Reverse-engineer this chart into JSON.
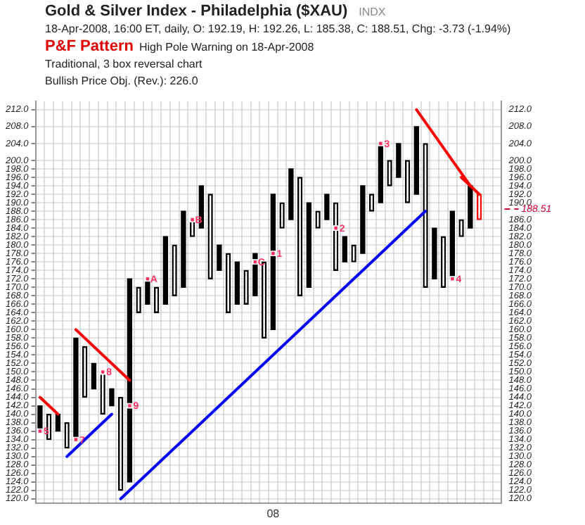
{
  "chart_data": {
    "type": "bar",
    "title": "Gold & Silver Index - Philadelphia ($XAU)",
    "subtitle": "18-Apr-2008, 16:00 ET, daily, O: 192.19, H: 192.26, L: 185.38, C: 188.51, Chg: -3.73 (-1.94%)",
    "annotations": [
      "INDX",
      "P&F Pattern",
      "High Pole Warning on 18-Apr-2008",
      "Traditional, 3 box reversal chart",
      "Bullish Price Obj. (Rev.): 226.0"
    ],
    "categories": [
      null,
      null,
      null,
      null,
      null,
      null,
      null,
      null,
      null,
      null,
      null,
      null,
      null,
      null,
      null,
      null,
      null,
      null,
      null,
      null,
      null,
      null,
      null,
      null,
      null,
      null,
      "08",
      null,
      null,
      null,
      null,
      null,
      null,
      null,
      null,
      null,
      null,
      null,
      null,
      null,
      null,
      null,
      null,
      null,
      null,
      null,
      null,
      null,
      null,
      null,
      null,
      null
    ],
    "series": [
      {
        "marker": "cross",
        "color": "#000000",
        "base": [
          136,
          null,
          136,
          null,
          134,
          null,
          146,
          null,
          142,
          null,
          124,
          null,
          166,
          null,
          166,
          null,
          170,
          null,
          184,
          null,
          174,
          null,
          166,
          null,
          168,
          null,
          160,
          null,
          186,
          null,
          170,
          null,
          186,
          null,
          176,
          null,
          178,
          null,
          190,
          null,
          196,
          null,
          192,
          null,
          172,
          null,
          172,
          null,
          184,
          null,
          null,
          null
        ],
        "values": [
          6,
          null,
          4,
          null,
          24,
          null,
          6,
          null,
          4,
          null,
          48,
          null,
          6,
          null,
          16,
          null,
          18,
          null,
          10,
          null,
          6,
          null,
          10,
          null,
          10,
          null,
          32,
          null,
          12,
          null,
          20,
          null,
          6,
          null,
          6,
          null,
          16,
          null,
          14,
          null,
          8,
          null,
          16,
          null,
          12,
          null,
          16,
          null,
          10,
          null,
          null,
          null
        ]
      },
      {
        "marker": "circle",
        "colors": [
          "#000000",
          "#000000",
          "#000000",
          "#000000",
          "#000000",
          "#000000",
          "#000000",
          "#000000",
          "#000000",
          "#000000",
          "#000000",
          "#000000",
          "#000000",
          "#000000",
          "#000000",
          "#000000",
          "#000000",
          "#000000",
          "#000000",
          "#000000",
          "#000000",
          "#000000",
          "#000000",
          "#000000",
          "#000000",
          "#000000",
          "#000000",
          "#000000",
          "#000000",
          "#000000",
          "#000000",
          "#000000",
          "#000000",
          "#000000",
          "#000000",
          "#000000",
          "#000000",
          "#000000",
          "#000000",
          "#000000",
          "#000000",
          "#000000",
          "#000000",
          "#000000",
          "#000000",
          "#000000",
          "#000000",
          "#000000",
          "#000000",
          "#ff0000",
          "#000000",
          "#000000"
        ],
        "base": [
          null,
          134,
          null,
          132,
          null,
          144,
          null,
          140,
          null,
          122,
          null,
          164,
          null,
          164,
          null,
          168,
          null,
          182,
          null,
          172,
          null,
          164,
          null,
          166,
          null,
          158,
          null,
          184,
          null,
          168,
          null,
          184,
          null,
          174,
          null,
          176,
          null,
          188,
          null,
          194,
          null,
          190,
          null,
          170,
          null,
          170,
          null,
          182,
          null,
          186,
          null,
          null
        ],
        "values": [
          null,
          6,
          null,
          6,
          null,
          12,
          null,
          10,
          null,
          22,
          null,
          6,
          null,
          6,
          null,
          12,
          null,
          4,
          null,
          20,
          null,
          14,
          null,
          8,
          null,
          18,
          null,
          6,
          null,
          28,
          null,
          4,
          null,
          16,
          null,
          4,
          null,
          4,
          null,
          6,
          null,
          10,
          null,
          34,
          null,
          12,
          null,
          4,
          null,
          6,
          null,
          null
        ]
      },
      {
        "type": "scatter",
        "name": "5",
        "marker": "square",
        "color": "#ff3366",
        "values": [
          136,
          null,
          null,
          null,
          null,
          null,
          null,
          null,
          null,
          null,
          null,
          null,
          null,
          null,
          null,
          null,
          null,
          null,
          null,
          null,
          null,
          null,
          null,
          null,
          null,
          null,
          null,
          null,
          null,
          null,
          null,
          null,
          null,
          null,
          null,
          null,
          null,
          null,
          null,
          null,
          null,
          null,
          null,
          null,
          null,
          null,
          null,
          null,
          null,
          null,
          null,
          null
        ]
      },
      {
        "type": "scatter",
        "name": "7",
        "marker": "square",
        "color": "#ff3366",
        "values": [
          null,
          null,
          null,
          null,
          134,
          null,
          null,
          null,
          null,
          null,
          null,
          null,
          null,
          null,
          null,
          null,
          null,
          null,
          null,
          null,
          null,
          null,
          null,
          null,
          null,
          null,
          null,
          null,
          null,
          null,
          null,
          null,
          null,
          null,
          null,
          null,
          null,
          null,
          null,
          null,
          null,
          null,
          null,
          null,
          null,
          null,
          null,
          null,
          null,
          null,
          null,
          null
        ]
      },
      {
        "type": "scatter",
        "name": "8",
        "marker": "square",
        "color": "#ff3366",
        "values": [
          null,
          null,
          null,
          null,
          null,
          null,
          null,
          150,
          null,
          null,
          null,
          null,
          null,
          null,
          null,
          null,
          null,
          null,
          null,
          null,
          null,
          null,
          null,
          null,
          null,
          null,
          null,
          null,
          null,
          null,
          null,
          null,
          null,
          null,
          null,
          null,
          null,
          null,
          null,
          null,
          null,
          null,
          null,
          null,
          null,
          null,
          null,
          null,
          null,
          null,
          null,
          null
        ]
      },
      {
        "type": "scatter",
        "name": "9",
        "marker": "square",
        "color": "#ff3366",
        "values": [
          null,
          null,
          null,
          null,
          null,
          null,
          null,
          null,
          null,
          null,
          142,
          null,
          null,
          null,
          null,
          null,
          null,
          null,
          null,
          null,
          null,
          null,
          null,
          null,
          null,
          null,
          null,
          null,
          null,
          null,
          null,
          null,
          null,
          null,
          null,
          null,
          null,
          null,
          null,
          null,
          null,
          null,
          null,
          null,
          null,
          null,
          null,
          null,
          null,
          null,
          null,
          null
        ]
      },
      {
        "type": "scatter",
        "name": "A",
        "marker": "square",
        "color": "#ff3366",
        "values": [
          null,
          null,
          null,
          null,
          null,
          null,
          null,
          null,
          null,
          null,
          null,
          null,
          172,
          null,
          null,
          null,
          null,
          null,
          null,
          null,
          null,
          null,
          null,
          null,
          null,
          null,
          null,
          null,
          null,
          null,
          null,
          null,
          null,
          null,
          null,
          null,
          null,
          null,
          null,
          null,
          null,
          null,
          null,
          null,
          null,
          null,
          null,
          null,
          null,
          null,
          null,
          null
        ]
      },
      {
        "type": "scatter",
        "name": "B",
        "marker": "square",
        "color": "#ff3366",
        "values": [
          null,
          null,
          null,
          null,
          null,
          null,
          null,
          null,
          null,
          null,
          null,
          null,
          null,
          null,
          null,
          null,
          null,
          186,
          null,
          null,
          null,
          null,
          null,
          null,
          null,
          null,
          null,
          null,
          null,
          null,
          null,
          null,
          null,
          null,
          null,
          null,
          null,
          null,
          null,
          null,
          null,
          null,
          null,
          null,
          null,
          null,
          null,
          null,
          null,
          null,
          null,
          null
        ]
      },
      {
        "type": "scatter",
        "name": "C",
        "marker": "square",
        "color": "#ff3366",
        "values": [
          null,
          null,
          null,
          null,
          null,
          null,
          null,
          null,
          null,
          null,
          null,
          null,
          null,
          null,
          null,
          null,
          null,
          null,
          null,
          null,
          null,
          null,
          null,
          null,
          176,
          null,
          null,
          null,
          null,
          null,
          null,
          null,
          null,
          null,
          null,
          null,
          null,
          null,
          null,
          null,
          null,
          null,
          null,
          null,
          null,
          null,
          null,
          null,
          null,
          null,
          null,
          null
        ]
      },
      {
        "type": "scatter",
        "name": "1",
        "marker": "square",
        "color": "#ff3366",
        "values": [
          null,
          null,
          null,
          null,
          null,
          null,
          null,
          null,
          null,
          null,
          null,
          null,
          null,
          null,
          null,
          null,
          null,
          null,
          null,
          null,
          null,
          null,
          null,
          null,
          null,
          null,
          178,
          null,
          null,
          null,
          null,
          null,
          null,
          null,
          null,
          null,
          null,
          null,
          null,
          null,
          null,
          null,
          null,
          null,
          null,
          null,
          null,
          null,
          null,
          null,
          null,
          null
        ]
      },
      {
        "type": "scatter",
        "name": "2",
        "marker": "square",
        "color": "#ff3366",
        "values": [
          null,
          null,
          null,
          null,
          null,
          null,
          null,
          null,
          null,
          null,
          null,
          null,
          null,
          null,
          null,
          null,
          null,
          null,
          null,
          null,
          null,
          null,
          null,
          null,
          null,
          null,
          null,
          null,
          null,
          null,
          null,
          null,
          null,
          184,
          null,
          null,
          null,
          null,
          null,
          null,
          null,
          null,
          null,
          null,
          null,
          null,
          null,
          null,
          null,
          null,
          null,
          null
        ]
      },
      {
        "type": "scatter",
        "name": "3",
        "marker": "square",
        "color": "#ff3366",
        "values": [
          null,
          null,
          null,
          null,
          null,
          null,
          null,
          null,
          null,
          null,
          null,
          null,
          null,
          null,
          null,
          null,
          null,
          null,
          null,
          null,
          null,
          null,
          null,
          null,
          null,
          null,
          null,
          null,
          null,
          null,
          null,
          null,
          null,
          null,
          null,
          null,
          null,
          null,
          204,
          null,
          null,
          null,
          null,
          null,
          null,
          null,
          null,
          null,
          null,
          null,
          null,
          null
        ]
      },
      {
        "type": "scatter",
        "name": "4",
        "marker": "square",
        "color": "#ff3366",
        "values": [
          null,
          null,
          null,
          null,
          null,
          null,
          null,
          null,
          null,
          null,
          null,
          null,
          null,
          null,
          null,
          null,
          null,
          null,
          null,
          null,
          null,
          null,
          null,
          null,
          null,
          null,
          null,
          null,
          null,
          null,
          null,
          null,
          null,
          null,
          null,
          null,
          null,
          null,
          null,
          null,
          null,
          null,
          null,
          null,
          null,
          null,
          172,
          null,
          null,
          null,
          null,
          null
        ]
      },
      {
        "type": "line",
        "color": "#ff0000",
        "values": [
          144,
          null,
          140,
          null,
          null,
          null,
          null,
          null,
          null,
          null,
          null,
          null,
          null,
          null,
          null,
          null,
          null,
          null,
          null,
          null,
          null,
          null,
          null,
          null,
          null,
          null,
          null,
          null,
          null,
          null,
          null,
          null,
          null,
          null,
          null,
          null,
          null,
          null,
          null,
          null,
          null,
          null,
          null,
          null,
          null,
          null,
          null,
          null,
          null,
          null,
          null,
          null
        ]
      },
      {
        "type": "line",
        "color": "#ff0000",
        "values": [
          null,
          null,
          null,
          null,
          160,
          null,
          null,
          null,
          null,
          null,
          148,
          null,
          null,
          null,
          null,
          null,
          null,
          null,
          null,
          null,
          null,
          null,
          null,
          null,
          null,
          null,
          null,
          null,
          null,
          null,
          null,
          null,
          null,
          null,
          null,
          null,
          null,
          null,
          null,
          null,
          null,
          null,
          null,
          null,
          null,
          null,
          null,
          null,
          null,
          null,
          null,
          null
        ]
      },
      {
        "type": "line",
        "color": "#ff0000",
        "values": [
          null,
          null,
          null,
          null,
          null,
          null,
          null,
          null,
          null,
          null,
          null,
          null,
          null,
          null,
          null,
          null,
          null,
          null,
          null,
          null,
          null,
          null,
          null,
          null,
          null,
          null,
          null,
          null,
          null,
          null,
          null,
          null,
          null,
          null,
          null,
          null,
          null,
          null,
          null,
          null,
          null,
          null,
          212,
          null,
          null,
          null,
          null,
          null,
          194,
          null,
          null,
          null
        ]
      },
      {
        "type": "line",
        "color": "#ff0000",
        "values": [
          null,
          null,
          null,
          null,
          null,
          null,
          null,
          null,
          null,
          null,
          null,
          null,
          null,
          null,
          null,
          null,
          null,
          null,
          null,
          null,
          null,
          null,
          null,
          null,
          null,
          null,
          null,
          null,
          null,
          null,
          null,
          null,
          null,
          null,
          null,
          null,
          null,
          null,
          null,
          null,
          null,
          null,
          null,
          null,
          null,
          null,
          null,
          196,
          null,
          192,
          null,
          null
        ]
      },
      {
        "type": "line",
        "color": "#0000ff",
        "values": [
          null,
          null,
          null,
          130,
          null,
          null,
          null,
          null,
          140,
          null,
          null,
          null,
          null,
          null,
          null,
          null,
          null,
          null,
          null,
          null,
          null,
          null,
          null,
          null,
          null,
          null,
          null,
          null,
          null,
          null,
          null,
          null,
          null,
          null,
          null,
          null,
          null,
          null,
          null,
          null,
          null,
          null,
          null,
          null,
          null,
          null,
          null,
          null,
          null,
          null,
          null,
          null
        ]
      },
      {
        "type": "line",
        "color": "#0000ff",
        "values": [
          null,
          null,
          null,
          null,
          null,
          null,
          null,
          null,
          null,
          120,
          null,
          null,
          null,
          null,
          null,
          null,
          null,
          null,
          null,
          null,
          null,
          null,
          null,
          null,
          null,
          null,
          null,
          null,
          null,
          null,
          null,
          null,
          null,
          null,
          null,
          null,
          null,
          null,
          null,
          null,
          null,
          null,
          null,
          188,
          null,
          null,
          null,
          null,
          null,
          null,
          null,
          null
        ]
      }
    ],
    "ylim": [
      119,
      214
    ],
    "yticks": [
      {
        "value": 120,
        "label": "120.0"
      },
      {
        "value": 122,
        "label": "122.0"
      },
      {
        "value": 124,
        "label": "124.0"
      },
      {
        "value": 126,
        "label": "126.0"
      },
      {
        "value": 128,
        "label": "128.0"
      },
      {
        "value": 130,
        "label": "130.0"
      },
      {
        "value": 132,
        "label": "132.0"
      },
      {
        "value": 134,
        "label": "134.0"
      },
      {
        "value": 136,
        "label": "136.0"
      },
      {
        "value": 138,
        "label": "138.0"
      },
      {
        "value": 140,
        "label": "140.0"
      },
      {
        "value": 142,
        "label": "142.0"
      },
      {
        "value": 144,
        "label": "144.0"
      },
      {
        "value": 146,
        "label": "146.0"
      },
      {
        "value": 148,
        "label": "148.0"
      },
      {
        "value": 150,
        "label": "150.0"
      },
      {
        "value": 152,
        "label": "152.0"
      },
      {
        "value": 154,
        "label": "154.0"
      },
      {
        "value": 156,
        "label": "156.0"
      },
      {
        "value": 158,
        "label": "158.0"
      },
      {
        "value": 160,
        "label": "160.0"
      },
      {
        "value": 162,
        "label": "162.0"
      },
      {
        "value": 164,
        "label": "164.0"
      },
      {
        "value": 166,
        "label": "166.0"
      },
      {
        "value": 168,
        "label": "168.0"
      },
      {
        "value": 170,
        "label": "170.0"
      },
      {
        "value": 172,
        "label": "172.0"
      },
      {
        "value": 174,
        "label": "174.0"
      },
      {
        "value": 176,
        "label": "176.0"
      },
      {
        "value": 178,
        "label": "178.0"
      },
      {
        "value": 180,
        "label": "180.0"
      },
      {
        "value": 182,
        "label": "182.0"
      },
      {
        "value": 184,
        "label": "184.0"
      },
      {
        "value": 186,
        "label": "186.0"
      },
      {
        "value": 188,
        "label": "188.0"
      },
      {
        "value": 190,
        "label": "190.0"
      },
      {
        "value": 192,
        "label": "192.0"
      },
      {
        "value": 194,
        "label": "194.0"
      },
      {
        "value": 196,
        "label": "196.0"
      },
      {
        "value": 198,
        "label": "198.0"
      },
      {
        "value": 200,
        "label": "200.0"
      },
      {
        "value": 204,
        "label": "204.0"
      },
      {
        "value": 208,
        "label": "208.0"
      },
      {
        "value": 212,
        "label": "212.0"
      }
    ],
    "y2lim": [
      119,
      214
    ],
    "y2ticks": [
      {
        "value": 120,
        "label": "120.0"
      },
      {
        "value": 122,
        "label": "122.0"
      },
      {
        "value": 124,
        "label": "124.0"
      },
      {
        "value": 126,
        "label": "126.0"
      },
      {
        "value": 128,
        "label": "128.0"
      },
      {
        "value": 130,
        "label": "130.0"
      },
      {
        "value": 132,
        "label": "132.0"
      },
      {
        "value": 134,
        "label": "134.0"
      },
      {
        "value": 136,
        "label": "136.0"
      },
      {
        "value": 138,
        "label": "138.0"
      },
      {
        "value": 140,
        "label": "140.0"
      },
      {
        "value": 142,
        "label": "142.0"
      },
      {
        "value": 144,
        "label": "144.0"
      },
      {
        "value": 146,
        "label": "146.0"
      },
      {
        "value": 148,
        "label": "148.0"
      },
      {
        "value": 150,
        "label": "150.0"
      },
      {
        "value": 152,
        "label": "152.0"
      },
      {
        "value": 154,
        "label": "154.0"
      },
      {
        "value": 156,
        "label": "156.0"
      },
      {
        "value": 158,
        "label": "158.0"
      },
      {
        "value": 160,
        "label": "160.0"
      },
      {
        "value": 162,
        "label": "162.0"
      },
      {
        "value": 164,
        "label": "164.0"
      },
      {
        "value": 166,
        "label": "166.0"
      },
      {
        "value": 168,
        "label": "168.0"
      },
      {
        "value": 170,
        "label": "170.0"
      },
      {
        "value": 172,
        "label": "172.0"
      },
      {
        "value": 174,
        "label": "174.0"
      },
      {
        "value": 176,
        "label": "176.0"
      },
      {
        "value": 178,
        "label": "178.0"
      },
      {
        "value": 180,
        "label": "180.0"
      },
      {
        "value": 182,
        "label": "182.0"
      },
      {
        "value": 184,
        "label": "184.0"
      },
      {
        "value": 186,
        "label": "186.0"
      },
      {
        "value": 188,
        "label": null
      },
      {
        "value": 190,
        "label": "190.0"
      },
      {
        "value": 192,
        "label": "192.0"
      },
      {
        "value": 194,
        "label": "194.0"
      },
      {
        "value": 196,
        "label": "196.0"
      },
      {
        "value": 198,
        "label": "198.0"
      },
      {
        "value": 200,
        "label": "200.0"
      },
      {
        "value": 204,
        "label": "204.0"
      },
      {
        "value": 208,
        "label": "208.0"
      },
      {
        "value": 212,
        "label": "212.0"
      }
    ],
    "grid": true,
    "ref_lines": [
      {
        "axis": "y2",
        "value": 188.51,
        "label": "188.51",
        "color": "#cc0033",
        "line_style": "dashed"
      }
    ]
  }
}
